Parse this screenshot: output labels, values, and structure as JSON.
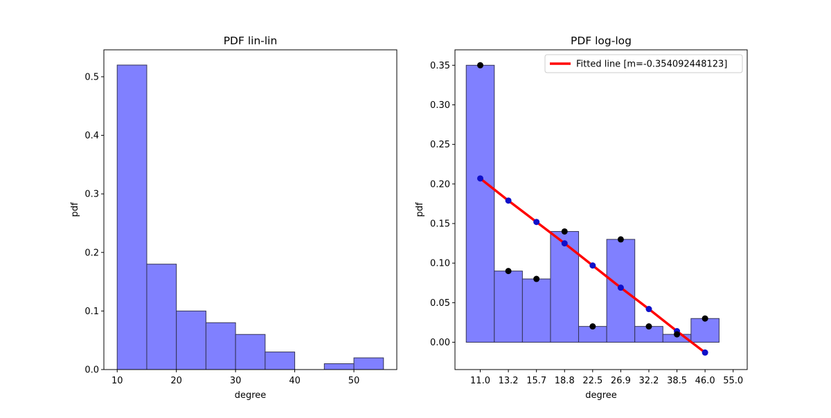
{
  "chart_data": [
    {
      "type": "bar",
      "title": "PDF lin-lin",
      "xlabel": "degree",
      "ylabel": "pdf",
      "xlim": [
        7.75,
        57.25
      ],
      "ylim": [
        0,
        0.546
      ],
      "xticks": [
        10,
        20,
        30,
        40,
        50
      ],
      "yticks": [
        0.0,
        0.1,
        0.2,
        0.3,
        0.4,
        0.5
      ],
      "ytick_labels": [
        "0.0",
        "0.1",
        "0.2",
        "0.3",
        "0.4",
        "0.5"
      ],
      "bin_edges": [
        10,
        15,
        20,
        25,
        30,
        35,
        40,
        45,
        50,
        55
      ],
      "values": [
        0.52,
        0.18,
        0.1,
        0.08,
        0.06,
        0.03,
        0.0,
        0.01,
        0.02
      ],
      "bar_color": "#8080ff",
      "edge_color": "#333355"
    },
    {
      "type": "bar",
      "title": "PDF log-log",
      "xlabel": "degree",
      "ylabel": "pdf",
      "xlim": [
        -0.9,
        9.5
      ],
      "ylim": [
        -0.0345,
        0.3695
      ],
      "xticks": [
        0,
        1,
        2,
        3,
        4,
        5,
        6,
        7,
        8,
        9
      ],
      "xtick_labels": [
        "11.0",
        "13.2",
        "15.7",
        "18.8",
        "22.5",
        "26.9",
        "32.2",
        "38.5",
        "46.0",
        "55.0"
      ],
      "yticks": [
        0.0,
        0.05,
        0.1,
        0.15,
        0.2,
        0.25,
        0.3,
        0.35
      ],
      "ytick_labels": [
        "0.00",
        "0.05",
        "0.10",
        "0.15",
        "0.20",
        "0.25",
        "0.30",
        "0.35"
      ],
      "values": [
        0.35,
        0.09,
        0.08,
        0.14,
        0.02,
        0.13,
        0.02,
        0.01,
        0.03
      ],
      "bar_color": "#8080ff",
      "edge_color": "#333355",
      "data_points": [
        0.35,
        0.09,
        0.08,
        0.14,
        0.02,
        0.13,
        0.02,
        0.01,
        0.03
      ],
      "fitted_points": [
        0.207,
        0.179,
        0.152,
        0.125,
        0.097,
        0.069,
        0.042,
        0.014,
        -0.013
      ],
      "fit_line_color": "#ff0000",
      "legend": {
        "label": "Fitted line [m=-0.354092448123]",
        "placement": "top-right"
      }
    }
  ]
}
